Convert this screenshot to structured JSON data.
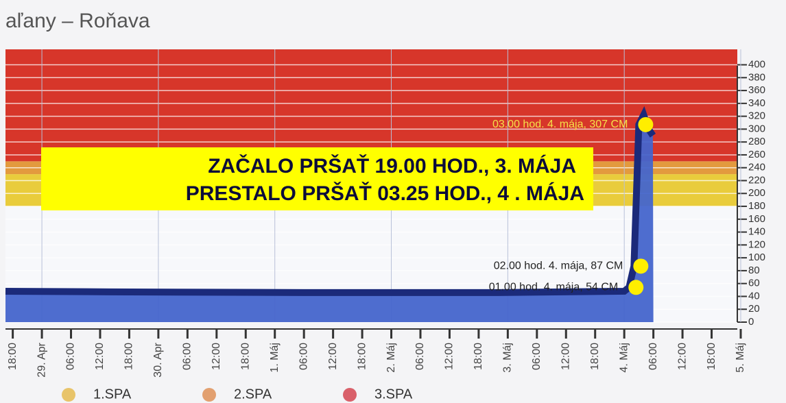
{
  "chart_data": {
    "type": "area",
    "title": "aľany – Roňava",
    "series": [
      {
        "name": "Roňava",
        "color": "#4565cc",
        "line_color": "#1b2a7a",
        "x": [
          -1.5,
          20,
          60,
          100,
          126,
          127,
          128,
          129,
          130,
          131,
          131.9,
          132
        ],
        "values": [
          48,
          47,
          46,
          46,
          48,
          54,
          87,
          307,
          322,
          300,
          290,
          0
        ]
      }
    ],
    "bands": [
      {
        "name": "1.SPA",
        "from": 180,
        "to": 230,
        "color": "#e9cc3c",
        "legend_color": "#e8c46a"
      },
      {
        "name": "2.SPA",
        "from": 230,
        "to": 250,
        "color": "#e39a3e",
        "legend_color": "#e2a070"
      },
      {
        "name": "3.SPA",
        "from": 250,
        "to": 424,
        "color": "#d7362a",
        "legend_color": "#d9606a"
      }
    ],
    "annotations": [
      {
        "x": 129,
        "y": 307,
        "label": "03.00  hod. 4. mája, 307  CM",
        "color": "#f5e04a"
      },
      {
        "x": 128,
        "y": 87,
        "label": "02.00  hod. 4. mája, 87  CM",
        "color": "#222222"
      },
      {
        "x": 127,
        "y": 54,
        "label": "01.00  hod. 4. mája, 54  CM",
        "color": "#222222"
      }
    ],
    "notes": [
      "ZAČALO PRŠAŤ 19.00 HOD., 3. MÁJA",
      "PRESTALO PRŠAŤ 03.25 HOD., 4 . MÁJA"
    ],
    "xlim": [
      -1.5,
      150
    ],
    "xticks": [
      {
        "value": 0,
        "label": "18:00"
      },
      {
        "value": 6,
        "label": "29. Apr"
      },
      {
        "value": 12,
        "label": "06:00"
      },
      {
        "value": 18,
        "label": "12:00"
      },
      {
        "value": 24,
        "label": "18:00"
      },
      {
        "value": 30,
        "label": "30. Apr"
      },
      {
        "value": 36,
        "label": "06:00"
      },
      {
        "value": 42,
        "label": "12:00"
      },
      {
        "value": 48,
        "label": "18:00"
      },
      {
        "value": 54,
        "label": "1. Máj"
      },
      {
        "value": 60,
        "label": "06:00"
      },
      {
        "value": 66,
        "label": "12:00"
      },
      {
        "value": 72,
        "label": "18:00"
      },
      {
        "value": 78,
        "label": "2. Máj"
      },
      {
        "value": 84,
        "label": "06:00"
      },
      {
        "value": 90,
        "label": "12:00"
      },
      {
        "value": 96,
        "label": "18:00"
      },
      {
        "value": 102,
        "label": "3. Máj"
      },
      {
        "value": 108,
        "label": "06:00"
      },
      {
        "value": 114,
        "label": "12:00"
      },
      {
        "value": 120,
        "label": "18:00"
      },
      {
        "value": 126,
        "label": "4. Máj"
      },
      {
        "value": 132,
        "label": "06:00"
      },
      {
        "value": 138,
        "label": "12:00"
      },
      {
        "value": 144,
        "label": "18:00"
      },
      {
        "value": 150,
        "label": "5. Máj"
      }
    ],
    "ylim": [
      0,
      424
    ],
    "yticks": [
      0,
      20,
      40,
      60,
      80,
      100,
      120,
      140,
      160,
      180,
      200,
      220,
      240,
      260,
      280,
      300,
      320,
      340,
      360,
      380,
      400
    ],
    "grid": true
  }
}
